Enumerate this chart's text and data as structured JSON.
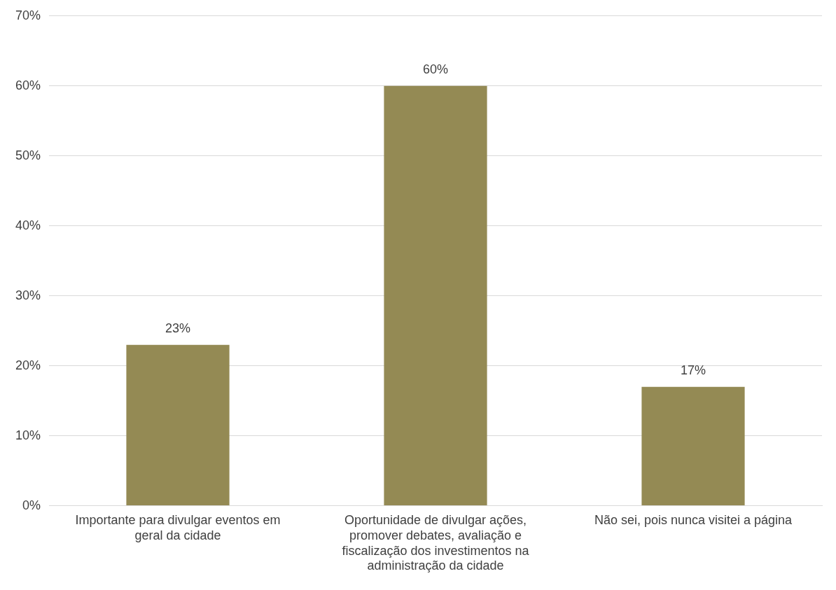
{
  "chart_data": {
    "type": "bar",
    "categories": [
      "Importante para divulgar eventos em geral da cidade",
      "Oportunidade de divulgar ações, promover debates, avaliação e fiscalização dos investimentos na administração da cidade",
      "Não sei, pois nunca visitei a página"
    ],
    "values": [
      23,
      60,
      17
    ],
    "color": "#948a54",
    "ylim": [
      0,
      70
    ],
    "yticks": [
      {
        "value": 0,
        "label": "0%"
      },
      {
        "value": 10,
        "label": "10%"
      },
      {
        "value": 20,
        "label": "20%"
      },
      {
        "value": 30,
        "label": "30%"
      },
      {
        "value": 40,
        "label": "40%"
      },
      {
        "value": 50,
        "label": "50%"
      },
      {
        "value": 60,
        "label": "60%"
      },
      {
        "value": 70,
        "label": "70%"
      }
    ],
    "value_labels": [
      "23%",
      "60%",
      "17%"
    ],
    "grid": "y",
    "legend": false
  }
}
